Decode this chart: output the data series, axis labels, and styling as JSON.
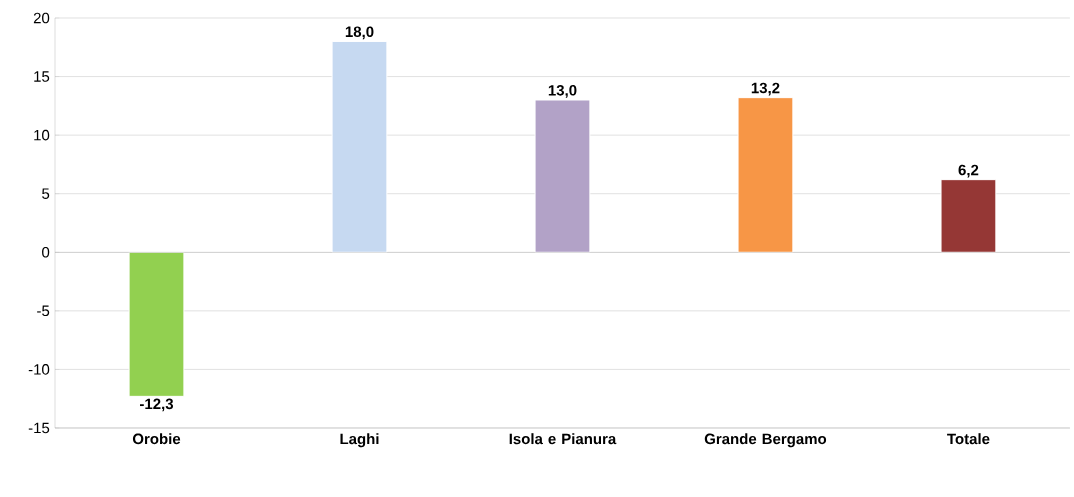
{
  "chart_data": {
    "type": "bar",
    "categories": [
      "Orobie",
      "Laghi",
      "Isola e Pianura",
      "Grande Bergamo",
      "Totale"
    ],
    "values": [
      -12.3,
      18.0,
      13.0,
      13.2,
      6.2
    ],
    "colors": [
      "#92d050",
      "#c6d9f1",
      "#b2a2c7",
      "#f79646",
      "#953735"
    ],
    "value_labels": [
      "-12,3",
      "18,0",
      "13,0",
      "13,2",
      "6,2"
    ],
    "ylim": [
      -15,
      20
    ],
    "yticks": [
      -15,
      -10,
      -5,
      0,
      5,
      10,
      15,
      20
    ],
    "grid": "y"
  }
}
